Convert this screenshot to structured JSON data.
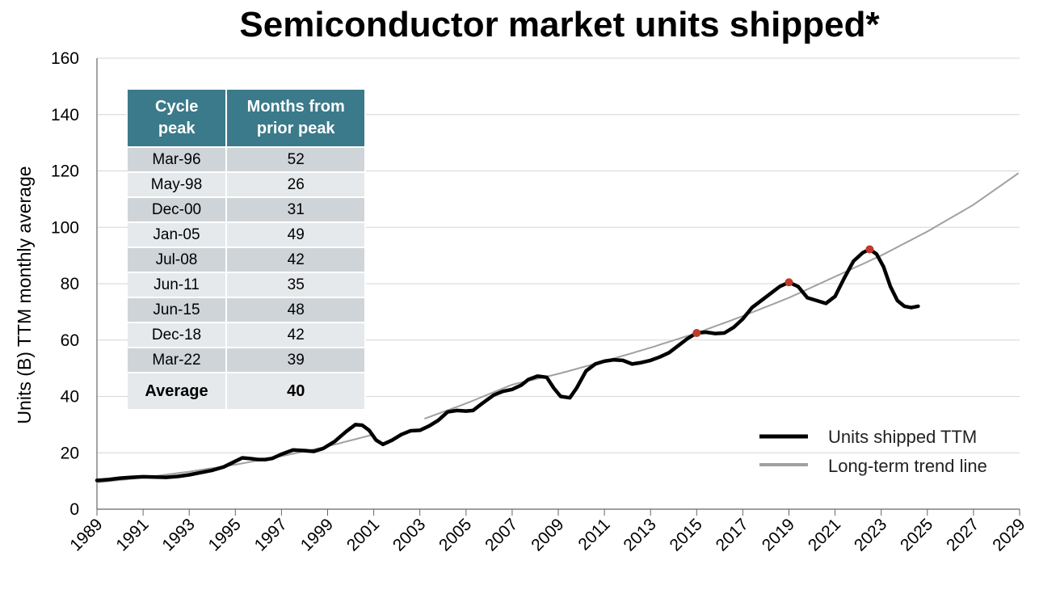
{
  "chart_data": {
    "type": "line",
    "title": "Semiconductor market units shipped*",
    "ylabel": "Units (B) TTM monthly average",
    "xlabel": "",
    "ylim": [
      0,
      160
    ],
    "xlim": [
      1989,
      2029
    ],
    "y_ticks": [
      "0",
      "20",
      "40",
      "60",
      "80",
      "100",
      "120",
      "140",
      "160"
    ],
    "x_ticks": [
      "1989",
      "1991",
      "1993",
      "1995",
      "1997",
      "1999",
      "2001",
      "2003",
      "2005",
      "2007",
      "2009",
      "2011",
      "2013",
      "2015",
      "2017",
      "2019",
      "2021",
      "2023",
      "2025",
      "2027",
      "2029"
    ],
    "grid": true,
    "legend_position": "bottom-right",
    "colors": {
      "units": "#000000",
      "trend": "#a0a0a0",
      "peak": "#c0392b"
    },
    "series": [
      {
        "name": "Units shipped TTM",
        "points": [
          [
            1989.0,
            10.2
          ],
          [
            1989.5,
            10.5
          ],
          [
            1990.0,
            11.0
          ],
          [
            1990.5,
            11.3
          ],
          [
            1991.0,
            11.5
          ],
          [
            1991.5,
            11.4
          ],
          [
            1992.0,
            11.3
          ],
          [
            1992.5,
            11.6
          ],
          [
            1993.0,
            12.2
          ],
          [
            1993.5,
            13.0
          ],
          [
            1994.0,
            13.8
          ],
          [
            1994.5,
            15.0
          ],
          [
            1995.0,
            17.0
          ],
          [
            1995.3,
            18.2
          ],
          [
            1995.6,
            18.0
          ],
          [
            1996.0,
            17.6
          ],
          [
            1996.3,
            17.6
          ],
          [
            1996.6,
            18.0
          ],
          [
            1997.0,
            19.5
          ],
          [
            1997.5,
            21.0
          ],
          [
            1998.0,
            20.8
          ],
          [
            1998.4,
            20.5
          ],
          [
            1998.8,
            21.5
          ],
          [
            1999.3,
            24.0
          ],
          [
            1999.8,
            27.5
          ],
          [
            2000.2,
            30.0
          ],
          [
            2000.5,
            29.8
          ],
          [
            2000.8,
            28.0
          ],
          [
            2001.1,
            24.5
          ],
          [
            2001.4,
            23.0
          ],
          [
            2001.8,
            24.5
          ],
          [
            2002.2,
            26.5
          ],
          [
            2002.6,
            27.8
          ],
          [
            2003.0,
            28.0
          ],
          [
            2003.4,
            29.5
          ],
          [
            2003.8,
            31.5
          ],
          [
            2004.2,
            34.5
          ],
          [
            2004.6,
            35.0
          ],
          [
            2005.0,
            34.8
          ],
          [
            2005.3,
            35.0
          ],
          [
            2005.7,
            37.5
          ],
          [
            2006.2,
            40.5
          ],
          [
            2006.6,
            41.8
          ],
          [
            2007.0,
            42.5
          ],
          [
            2007.4,
            44.0
          ],
          [
            2007.7,
            46.0
          ],
          [
            2008.1,
            47.2
          ],
          [
            2008.5,
            46.8
          ],
          [
            2008.8,
            43.0
          ],
          [
            2009.1,
            40.0
          ],
          [
            2009.5,
            39.5
          ],
          [
            2009.8,
            43.0
          ],
          [
            2010.2,
            49.0
          ],
          [
            2010.6,
            51.5
          ],
          [
            2011.0,
            52.5
          ],
          [
            2011.4,
            53.0
          ],
          [
            2011.8,
            52.8
          ],
          [
            2012.2,
            51.5
          ],
          [
            2012.6,
            52.0
          ],
          [
            2013.0,
            52.8
          ],
          [
            2013.4,
            54.0
          ],
          [
            2013.8,
            55.5
          ],
          [
            2014.2,
            58.0
          ],
          [
            2014.6,
            60.5
          ],
          [
            2015.0,
            62.5
          ],
          [
            2015.4,
            62.8
          ],
          [
            2015.8,
            62.3
          ],
          [
            2016.2,
            62.5
          ],
          [
            2016.6,
            64.5
          ],
          [
            2017.0,
            67.5
          ],
          [
            2017.4,
            71.5
          ],
          [
            2017.8,
            74.0
          ],
          [
            2018.2,
            76.5
          ],
          [
            2018.6,
            79.0
          ],
          [
            2019.0,
            80.5
          ],
          [
            2019.4,
            79.0
          ],
          [
            2019.8,
            75.0
          ],
          [
            2020.2,
            74.0
          ],
          [
            2020.6,
            73.0
          ],
          [
            2021.0,
            75.5
          ],
          [
            2021.4,
            82.0
          ],
          [
            2021.8,
            88.0
          ],
          [
            2022.2,
            91.0
          ],
          [
            2022.5,
            92.2
          ],
          [
            2022.8,
            90.5
          ],
          [
            2023.1,
            86.0
          ],
          [
            2023.4,
            79.0
          ],
          [
            2023.7,
            74.0
          ],
          [
            2024.0,
            72.0
          ],
          [
            2024.3,
            71.5
          ],
          [
            2024.6,
            72.0
          ]
        ]
      },
      {
        "name": "Long-term trend line",
        "points": [
          [
            1989.0,
            9.5
          ],
          [
            1991.0,
            11.2
          ],
          [
            1993.0,
            13.3
          ],
          [
            1995.0,
            15.8
          ],
          [
            1997.0,
            18.8
          ],
          [
            1999.0,
            22.3
          ],
          [
            2001.0,
            26.5
          ],
          [
            2003.0,
            31.5
          ],
          [
            2005.0,
            37.5
          ],
          [
            2007.0,
            44.2
          ],
          [
            2009.0,
            48.0
          ],
          [
            2011.0,
            52.5
          ],
          [
            2013.0,
            57.3
          ],
          [
            2015.0,
            62.5
          ],
          [
            2017.0,
            68.5
          ],
          [
            2019.0,
            75.0
          ],
          [
            2021.0,
            82.5
          ],
          [
            2023.0,
            90.0
          ],
          [
            2025.0,
            98.5
          ],
          [
            2027.0,
            108.0
          ],
          [
            2029.0,
            119.5
          ]
        ],
        "gap": [
          2001.2,
          2003.2
        ]
      }
    ],
    "peaks": [
      {
        "x": 2015.0,
        "y": 62.5
      },
      {
        "x": 2019.0,
        "y": 80.5
      },
      {
        "x": 2022.5,
        "y": 92.2
      }
    ]
  },
  "table": {
    "headers": [
      "Cycle peak",
      "Months from prior peak"
    ],
    "rows": [
      [
        "Mar-96",
        "52"
      ],
      [
        "May-98",
        "26"
      ],
      [
        "Dec-00",
        "31"
      ],
      [
        "Jan-05",
        "49"
      ],
      [
        "Jul-08",
        "42"
      ],
      [
        "Jun-11",
        "35"
      ],
      [
        "Jun-15",
        "48"
      ],
      [
        "Dec-18",
        "42"
      ],
      [
        "Mar-22",
        "39"
      ]
    ],
    "average": [
      "Average",
      "40"
    ]
  }
}
